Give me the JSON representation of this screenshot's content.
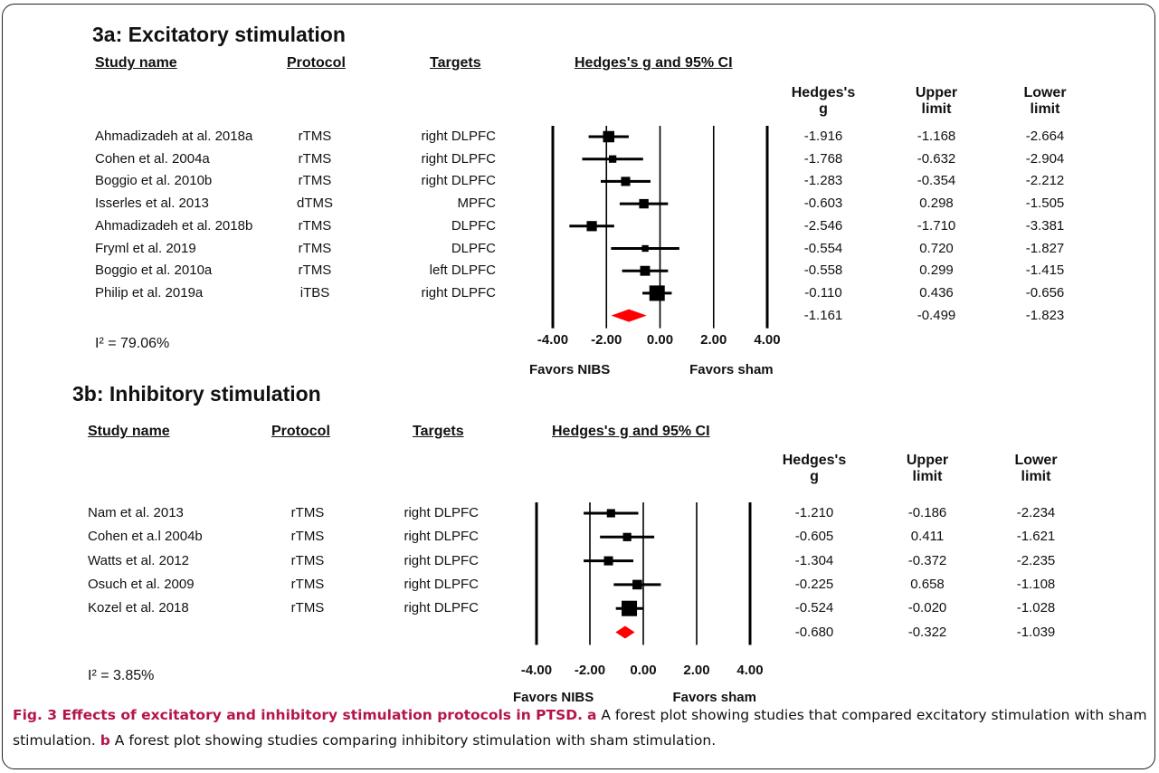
{
  "chart_data": [
    {
      "type": "forest",
      "title": "3a: Excitatory stimulation",
      "columns": {
        "study": "Study name",
        "protocol": "Protocol",
        "targets": "Targets",
        "plot": "Hedges's g and 95% CI",
        "g": [
          "Hedges's",
          "g"
        ],
        "upper": [
          "Upper",
          "limit"
        ],
        "lower": [
          "Lower",
          "limit"
        ]
      },
      "x_ticks": [
        "-4.00",
        "-2.00",
        "0.00",
        "2.00",
        "4.00"
      ],
      "xlim": [
        -4,
        4
      ],
      "favors_left": "Favors NIBS",
      "favors_right": "Favors sham",
      "i_squared": "I² = 79.06%",
      "rows": [
        {
          "study": "Ahmadizadeh at al. 2018a",
          "protocol": "rTMS",
          "targets": "right DLPFC",
          "g": -1.916,
          "upper": -1.168,
          "lower": -2.664,
          "g_label": "-1.916",
          "upper_label": "-1.168",
          "lower_label": "-2.664"
        },
        {
          "study": "Cohen et al. 2004a",
          "protocol": "rTMS",
          "targets": "right DLPFC",
          "g": -1.768,
          "upper": -0.632,
          "lower": -2.904,
          "g_label": "-1.768",
          "upper_label": "-0.632",
          "lower_label": "-2.904"
        },
        {
          "study": "Boggio et al. 2010b",
          "protocol": "rTMS",
          "targets": "right DLPFC",
          "g": -1.283,
          "upper": -0.354,
          "lower": -2.212,
          "g_label": "-1.283",
          "upper_label": "-0.354",
          "lower_label": "-2.212"
        },
        {
          "study": "Isserles et al. 2013",
          "protocol": "dTMS",
          "targets": "MPFC",
          "g": -0.603,
          "upper": 0.298,
          "lower": -1.505,
          "g_label": "-0.603",
          "upper_label": "0.298",
          "lower_label": "-1.505"
        },
        {
          "study": "Ahmadizadeh et al. 2018b",
          "protocol": "rTMS",
          "targets": "DLPFC",
          "g": -2.546,
          "upper": -1.71,
          "lower": -3.381,
          "g_label": "-2.546",
          "upper_label": "-1.710",
          "lower_label": "-3.381"
        },
        {
          "study": "Fryml  et al. 2019",
          "protocol": "rTMS",
          "targets": "DLPFC",
          "g": -0.554,
          "upper": 0.72,
          "lower": -1.827,
          "g_label": "-0.554",
          "upper_label": "0.720",
          "lower_label": "-1.827"
        },
        {
          "study": "Boggio et al. 2010a",
          "protocol": "rTMS",
          "targets": "left DLPFC",
          "g": -0.558,
          "upper": 0.299,
          "lower": -1.415,
          "g_label": "-0.558",
          "upper_label": "0.299",
          "lower_label": "-1.415"
        },
        {
          "study": "Philip et al. 2019a",
          "protocol": "iTBS",
          "targets": "right DLPFC",
          "g": -0.11,
          "upper": 0.436,
          "lower": -0.656,
          "g_label": "-0.110",
          "upper_label": "0.436",
          "lower_label": "-0.656"
        }
      ],
      "summary": {
        "g": -1.161,
        "upper": -0.499,
        "lower": -1.823,
        "g_label": "-1.161",
        "upper_label": "-0.499",
        "lower_label": "-1.823",
        "color": "#ff0000"
      }
    },
    {
      "type": "forest",
      "title": "3b: Inhibitory stimulation",
      "columns": {
        "study": "Study name",
        "protocol": "Protocol",
        "targets": "Targets",
        "plot": "Hedges's g and 95% CI",
        "g": [
          "Hedges's",
          "g"
        ],
        "upper": [
          "Upper",
          "limit"
        ],
        "lower": [
          "Lower",
          "limit"
        ]
      },
      "x_ticks": [
        "-4.00",
        "-2.00",
        "0.00",
        "2.00",
        "4.00"
      ],
      "xlim": [
        -4,
        4
      ],
      "favors_left": "Favors NIBS",
      "favors_right": "Favors sham",
      "i_squared": "I² = 3.85%",
      "rows": [
        {
          "study": "Nam et al. 2013",
          "protocol": "rTMS",
          "targets": "right DLPFC",
          "g": -1.21,
          "upper": -0.186,
          "lower": -2.234,
          "g_label": "-1.210",
          "upper_label": "-0.186",
          "lower_label": "-2.234"
        },
        {
          "study": "Cohen et a.l 2004b",
          "protocol": "rTMS",
          "targets": "right DLPFC",
          "g": -0.605,
          "upper": 0.411,
          "lower": -1.621,
          "g_label": "-0.605",
          "upper_label": "0.411",
          "lower_label": "-1.621"
        },
        {
          "study": "Watts et al. 2012",
          "protocol": "rTMS",
          "targets": "right DLPFC",
          "g": -1.304,
          "upper": -0.372,
          "lower": -2.235,
          "g_label": "-1.304",
          "upper_label": "-0.372",
          "lower_label": "-2.235"
        },
        {
          "study": "Osuch et al. 2009",
          "protocol": "rTMS",
          "targets": "right DLPFC",
          "g": -0.225,
          "upper": 0.658,
          "lower": -1.108,
          "g_label": "-0.225",
          "upper_label": "0.658",
          "lower_label": "-1.108"
        },
        {
          "study": "Kozel et al. 2018",
          "protocol": "rTMS",
          "targets": "right DLPFC",
          "g": -0.524,
          "upper": -0.02,
          "lower": -1.028,
          "g_label": "-0.524",
          "upper_label": "-0.020",
          "lower_label": "-1.028"
        }
      ],
      "summary": {
        "g": -0.68,
        "upper": -0.322,
        "lower": -1.039,
        "g_label": "-0.680",
        "upper_label": "-0.322",
        "lower_label": "-1.039",
        "color": "#ff0000"
      }
    }
  ],
  "caption": {
    "head": "Fig. 3 Effects of excitatory and inhibitory stimulation protocols in PTSD.",
    "a_label": "a",
    "a_text": " A forest plot showing studies that compared excitatory stimulation with sham stimulation.",
    "b_label": "b",
    "b_text": " A forest plot showing studies comparing inhibitory stimulation with sham stimulation."
  }
}
